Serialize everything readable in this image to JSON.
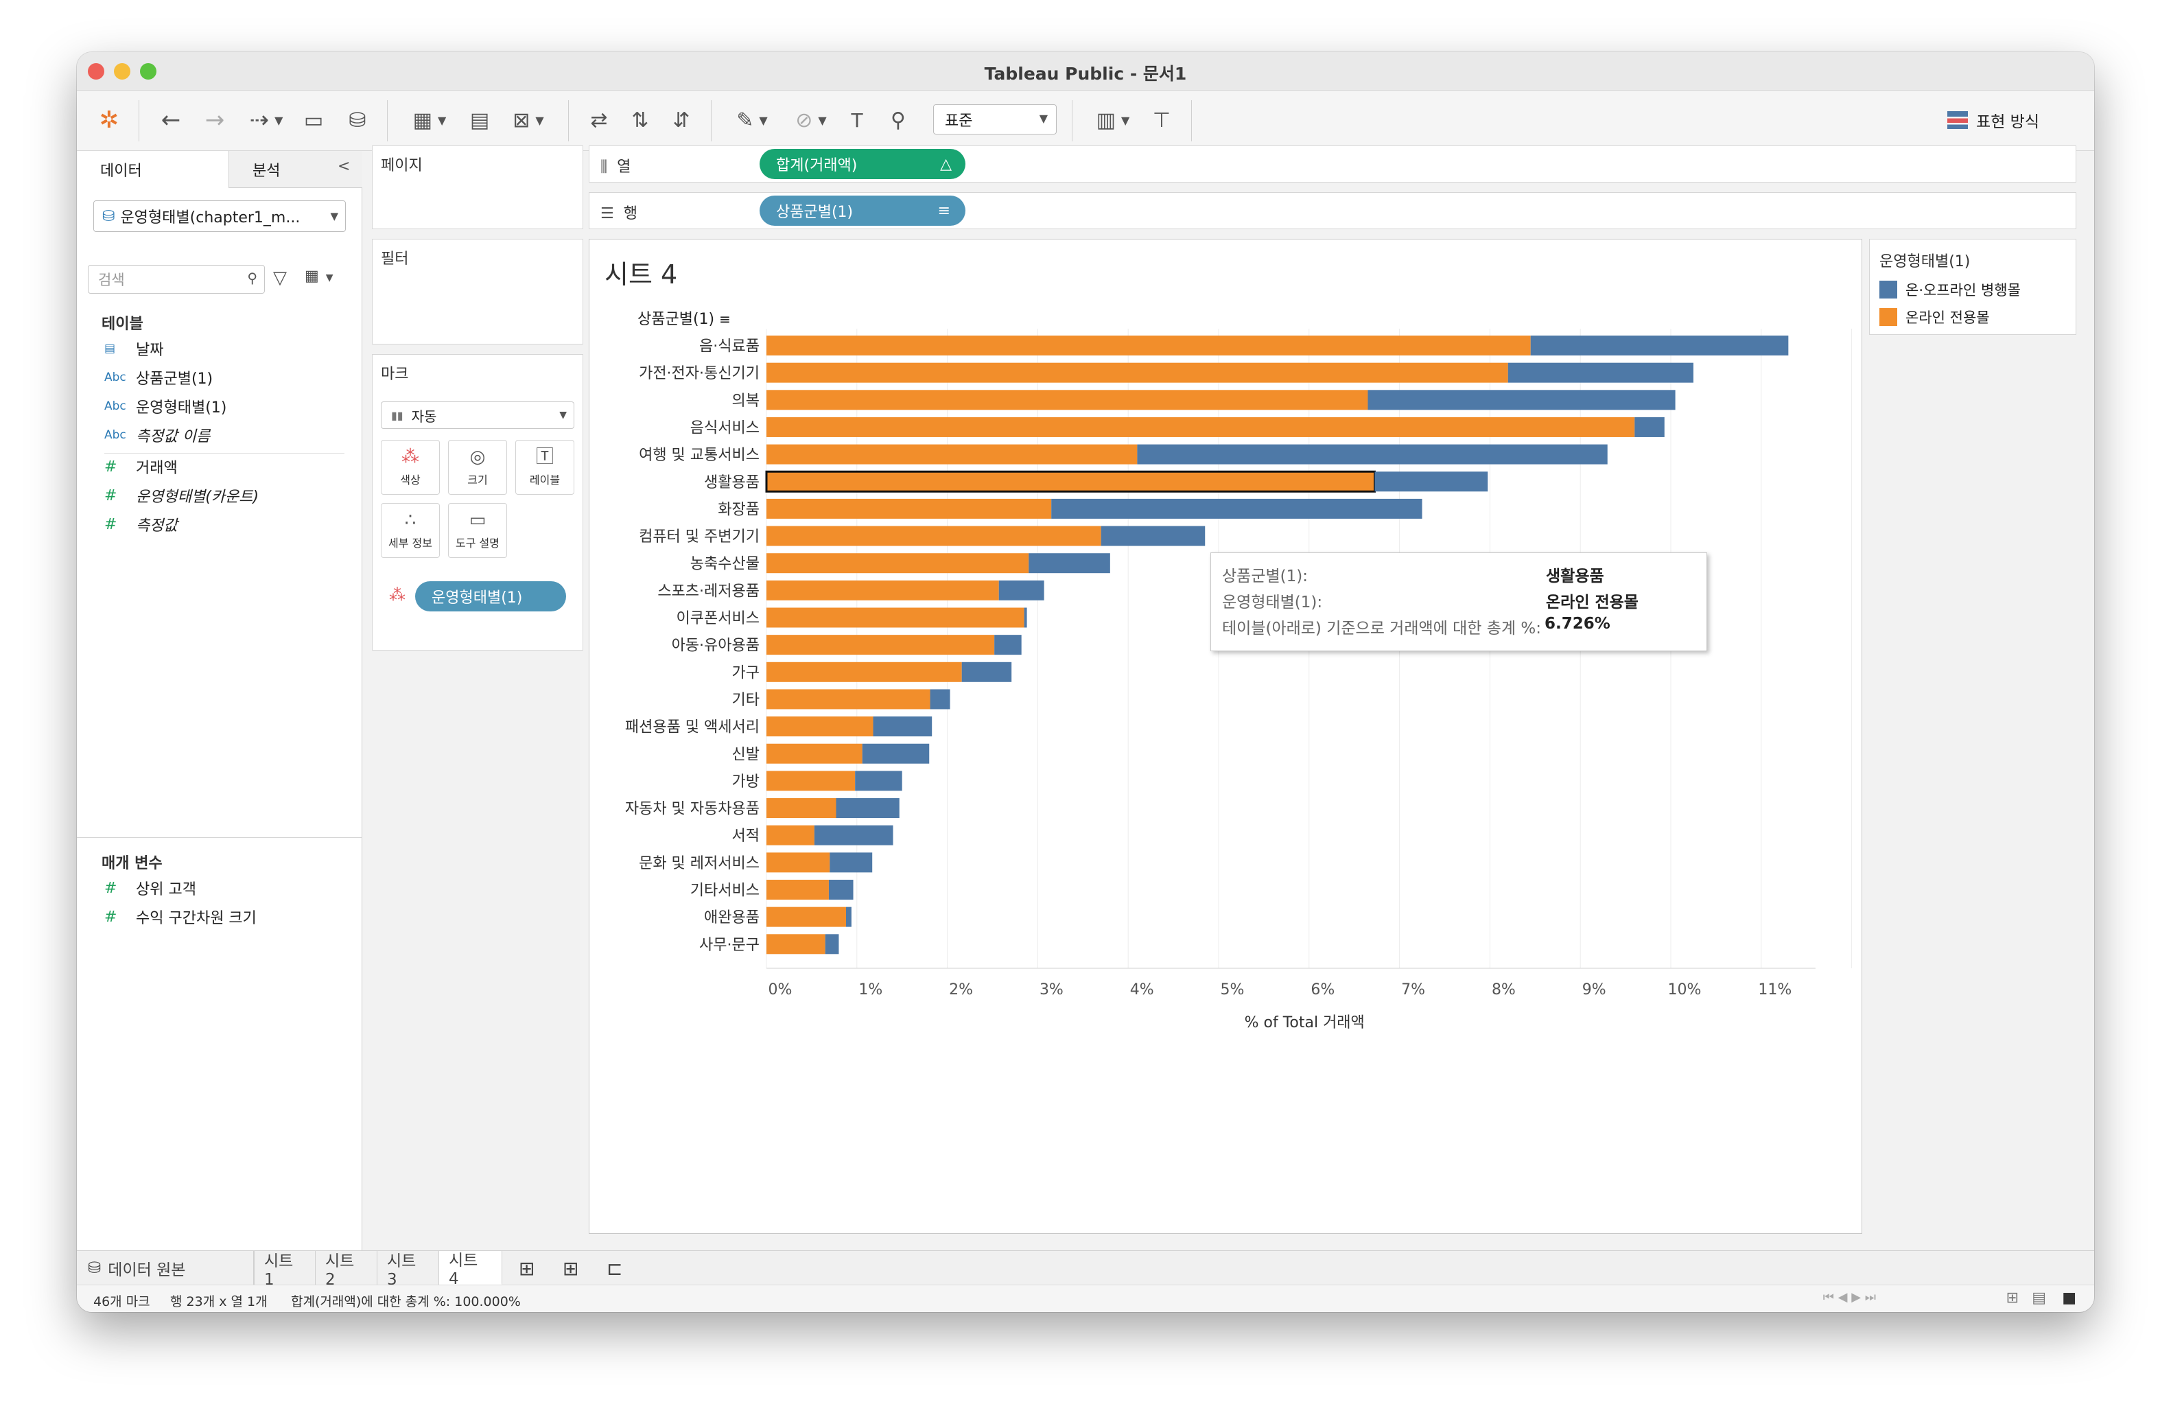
{
  "window": {
    "title": "Tableau Public - 문서1"
  },
  "toolbar": {
    "fit_label": "표준",
    "showme_label": "표현 방식"
  },
  "left_pane": {
    "tabs": [
      "데이터",
      "분석"
    ],
    "collapse_glyph": "<",
    "datasource": "운영형태별(chapter1_m...",
    "search_placeholder": "검색",
    "tables_heading": "테이블",
    "fields": [
      {
        "type": "date",
        "icon": "date-icon",
        "label": "날짜",
        "italic": false
      },
      {
        "type": "Abc",
        "icon": "string-icon",
        "label": "상품군별(1)",
        "italic": false
      },
      {
        "type": "Abc",
        "icon": "string-icon",
        "label": "운영형태별(1)",
        "italic": false
      },
      {
        "type": "Abc",
        "icon": "string-icon",
        "label": "측정값 이름",
        "italic": true
      },
      {
        "type": "#",
        "icon": "number-icon",
        "label": "거래액",
        "italic": false
      },
      {
        "type": "#",
        "icon": "number-icon",
        "label": "운영형태별(카운트)",
        "italic": true
      },
      {
        "type": "#",
        "icon": "number-icon",
        "label": "측정값",
        "italic": true
      }
    ],
    "params_heading": "매개 변수",
    "params": [
      {
        "icon": "number-icon",
        "label": "상위 고객"
      },
      {
        "icon": "number-icon",
        "label": "수익 구간차원 크기"
      }
    ]
  },
  "cards": {
    "pages": "페이지",
    "filters": "필터",
    "marks": "마크",
    "mark_type": "자동",
    "mark_buttons": [
      "색상",
      "크기",
      "레이블",
      "세부 정보",
      "도구 설명"
    ],
    "color_pill": "운영형태별(1)"
  },
  "shelves": {
    "columns_label": "열",
    "rows_label": "행",
    "columns_pill": "합계(거래액)",
    "rows_pill": "상품군별(1)"
  },
  "sheet": {
    "title": "시트 4",
    "row_header": "상품군별(1)"
  },
  "chart_data": {
    "type": "bar",
    "orientation": "horizontal",
    "stacked": true,
    "categories": [
      "음·식료품",
      "가전·전자·통신기기",
      "의복",
      "음식서비스",
      "여행 및 교통서비스",
      "생활용품",
      "화장품",
      "컴퓨터 및 주변기기",
      "농축수산물",
      "스포츠·레저용품",
      "이쿠폰서비스",
      "아동·유아용품",
      "가구",
      "기타",
      "패션용품 및 액세서리",
      "신발",
      "가방",
      "자동차 및 자동차용품",
      "서적",
      "문화 및 레저서비스",
      "기타서비스",
      "애완용품",
      "사무·문구"
    ],
    "series": [
      {
        "name": "온라인 전용몰",
        "color": "#f28e2b",
        "values": [
          8.45,
          8.2,
          6.65,
          9.6,
          4.1,
          6.726,
          3.15,
          3.7,
          2.9,
          2.57,
          2.85,
          2.52,
          2.16,
          1.81,
          1.18,
          1.06,
          0.98,
          0.77,
          0.53,
          0.7,
          0.69,
          0.88,
          0.65
        ]
      },
      {
        "name": "온·오프라인 병행몰",
        "color": "#4e79a7",
        "values": [
          2.85,
          2.05,
          3.4,
          0.33,
          5.2,
          1.25,
          4.1,
          1.15,
          0.9,
          0.5,
          0.03,
          0.3,
          0.55,
          0.22,
          0.65,
          0.74,
          0.52,
          0.7,
          0.87,
          0.47,
          0.27,
          0.06,
          0.15
        ]
      }
    ],
    "xlabel": "% of Total 거래액",
    "xticks": [
      "0%",
      "1%",
      "2%",
      "3%",
      "4%",
      "5%",
      "6%",
      "7%",
      "8%",
      "9%",
      "10%",
      "11%"
    ],
    "xlim": [
      0,
      12
    ],
    "grid": true,
    "legend_position": "right",
    "highlighted_category": "생활용품"
  },
  "legend": {
    "title": "운영형태별(1)",
    "items": [
      {
        "label": "온·오프라인 병행몰",
        "color": "#4e79a7"
      },
      {
        "label": "온라인 전용몰",
        "color": "#f28e2b"
      }
    ]
  },
  "tooltip": {
    "rows": [
      {
        "label": "상품군별(1):",
        "value": "생활용품"
      },
      {
        "label": "운영형태별(1):",
        "value": "온라인 전용몰"
      },
      {
        "label": "테이블(아래로) 기준으로 거래액에 대한 총계 %:",
        "value": "6.726%"
      }
    ]
  },
  "tabs": {
    "datasource": "데이터 원본",
    "sheets": [
      "시트 1",
      "시트 2",
      "시트 3",
      "시트 4"
    ],
    "active": "시트 4"
  },
  "status": {
    "marks": "46개 마크",
    "dims": "행 23개 x 열 1개",
    "sum": "합계(거래액)에 대한 총계 %: 100.000%"
  }
}
